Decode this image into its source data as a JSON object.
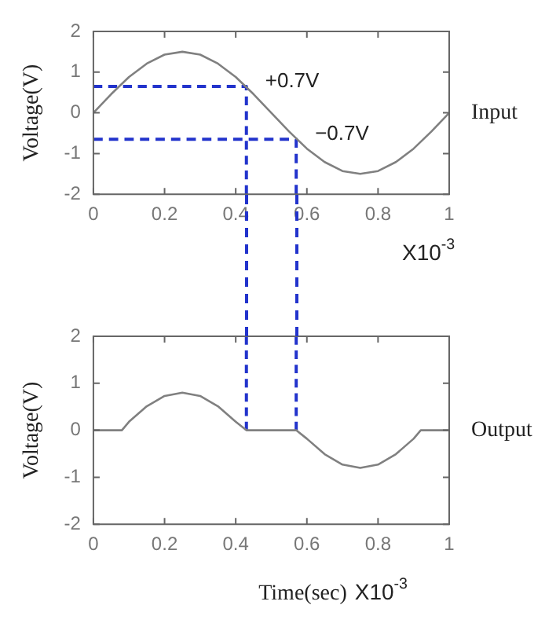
{
  "chart_data": [
    {
      "type": "line",
      "ylabel": "Voltage(V)",
      "xlim": [
        0,
        1
      ],
      "xticks": [
        0,
        0.2,
        0.4,
        0.6,
        0.8,
        1
      ],
      "ylim": [
        -2,
        2
      ],
      "yticks": [
        -2,
        -1,
        0,
        1,
        2
      ],
      "grid": false,
      "legend": false,
      "marker": "none",
      "series": [
        {
          "color": "#808080",
          "line_style": "solid",
          "x": [
            0,
            0.05,
            0.1,
            0.15,
            0.2,
            0.25,
            0.3,
            0.35,
            0.4,
            0.45,
            0.5,
            0.55,
            0.6,
            0.65,
            0.7,
            0.75,
            0.8,
            0.85,
            0.9,
            0.95,
            1
          ],
          "values": [
            0,
            0.46,
            0.88,
            1.21,
            1.43,
            1.5,
            1.43,
            1.21,
            0.88,
            0.46,
            0,
            -0.46,
            -0.88,
            -1.21,
            -1.43,
            -1.5,
            -1.43,
            -1.21,
            -0.88,
            -0.46,
            0
          ]
        },
        {
          "color": "#2233cc",
          "line_style": "dashed",
          "x": [
            0,
            0.43,
            0.43
          ],
          "values": [
            0.65,
            0.65,
            -2
          ]
        },
        {
          "color": "#2233cc",
          "line_style": "dashed",
          "x": [
            0,
            0.57,
            0.57
          ],
          "values": [
            -0.65,
            -0.65,
            -2
          ]
        }
      ],
      "annotations": [
        {
          "text": "+0.7V",
          "x": 0.43,
          "y": 0.65
        },
        {
          "text": "−0.7V",
          "x": 0.57,
          "y": -0.65
        },
        "Input",
        "X10$^{-3}$"
      ]
    },
    {
      "type": "line",
      "ylabel": "Voltage(V)",
      "xlabel": "Time(sec)",
      "xlim": [
        0,
        1
      ],
      "xticks": [
        0,
        0.2,
        0.4,
        0.6,
        0.8,
        1
      ],
      "ylim": [
        -2,
        2
      ],
      "yticks": [
        -2,
        -1,
        0,
        1,
        2
      ],
      "grid": false,
      "legend": false,
      "marker": "none",
      "series": [
        {
          "color": "#808080",
          "line_style": "solid",
          "x": [
            0,
            0.08,
            0.1,
            0.15,
            0.2,
            0.25,
            0.3,
            0.35,
            0.4,
            0.43,
            0.57,
            0.6,
            0.65,
            0.7,
            0.75,
            0.8,
            0.85,
            0.9,
            0.92,
            1
          ],
          "values": [
            0,
            0,
            0.18,
            0.51,
            0.73,
            0.8,
            0.73,
            0.51,
            0.18,
            0,
            0,
            -0.18,
            -0.51,
            -0.73,
            -0.8,
            -0.73,
            -0.51,
            -0.18,
            0,
            0
          ]
        },
        {
          "color": "#2233cc",
          "line_style": "dashed",
          "x": [
            0.43,
            0.43
          ],
          "values": [
            2,
            0
          ]
        },
        {
          "color": "#2233cc",
          "line_style": "dashed",
          "x": [
            0.57,
            0.57
          ],
          "values": [
            2,
            0
          ]
        }
      ],
      "annotations": [
        "Output",
        "X10$^{-3}$"
      ]
    }
  ]
}
